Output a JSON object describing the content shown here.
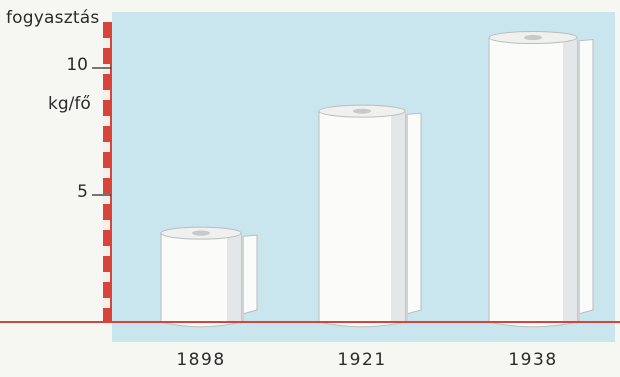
{
  "chart_data": {
    "type": "bar",
    "bar_style": "paper-rolls",
    "ylabel": "fogyasztás",
    "yunit": "kg/fő",
    "categories": [
      "1898",
      "1921",
      "1938"
    ],
    "values": [
      3.5,
      8.3,
      11.2
    ],
    "yticks": [
      {
        "value": 10,
        "label": "10"
      },
      {
        "value": 5,
        "label": "5"
      }
    ],
    "ylim": [
      0,
      12.5
    ],
    "colors": {
      "background": "#c9e6ee",
      "axis_stripe_red": "#d8443a",
      "axis_stripe_light": "#f3f0ea",
      "baseline": "#d8443a",
      "roll_fill": "#fbfbf9",
      "roll_shade": "#cfd3d4"
    }
  }
}
